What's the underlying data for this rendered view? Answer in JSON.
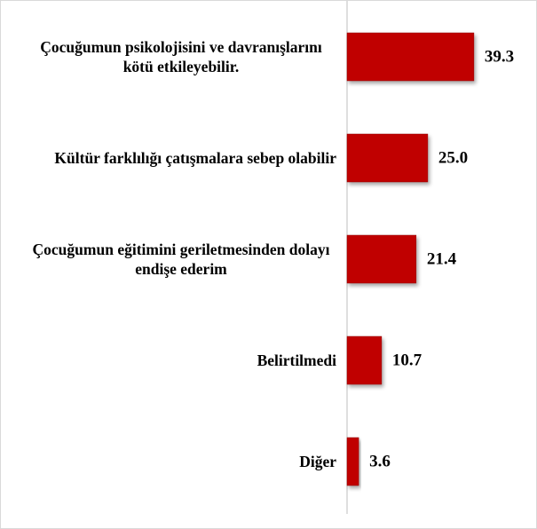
{
  "chart_data": {
    "type": "bar",
    "orientation": "horizontal",
    "categories": [
      "Çocuğumun psikolojisini ve davranışlarını kötü etkileyebilir.",
      "Kültür farklılığı çatışmalara sebep olabilir",
      "Çocuğumun eğitimini geriletmesinden dolayı endişe ederim",
      "Belirtilmedi",
      "Diğer"
    ],
    "values": [
      39.3,
      25.0,
      21.4,
      10.7,
      3.6
    ],
    "value_labels": [
      "39.3",
      "25.0",
      "21.4",
      "10.7",
      "3.6"
    ],
    "color": "#c00000",
    "xlim": [
      0,
      55
    ]
  }
}
